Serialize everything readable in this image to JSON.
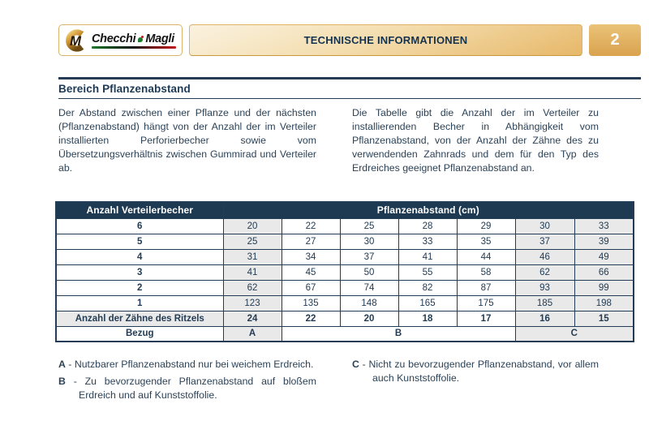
{
  "header": {
    "logo": {
      "brand_left": "Checchi",
      "brand_right": "Magli",
      "monogram": "M"
    },
    "banner_title": "TECHNISCHE INFORMATIONEN",
    "page_number": "2"
  },
  "section": {
    "title": "Bereich Pflanzenabstand"
  },
  "intro": {
    "left": "Der Abstand zwischen einer Pflanze und der nächsten (Pflanzenabstand) hängt von der Anzahl der im Verteiler installierten Perforierbecher sowie vom Übersetzungsverhältnis zwischen Gummirad und Verteiler ab.",
    "right": "Die Tabelle gibt die Anzahl der im Verteiler zu installierenden Becher in Abhängigkeit vom Pflanzenabstand, von der Anzahl der Zähne des zu verwendenden Zahnrads und dem für den Typ des Erdreiches geeignet Pflanzenabstand an."
  },
  "table": {
    "col_header_left": "Anzahl Verteilerbecher",
    "col_header_right": "Pflanzenabstand (cm)",
    "shaded_value_columns": [
      0,
      5,
      6
    ],
    "rows": [
      {
        "label": "6",
        "values": [
          "20",
          "22",
          "25",
          "28",
          "29",
          "30",
          "33"
        ]
      },
      {
        "label": "5",
        "values": [
          "25",
          "27",
          "30",
          "33",
          "35",
          "37",
          "39"
        ]
      },
      {
        "label": "4",
        "values": [
          "31",
          "34",
          "37",
          "41",
          "44",
          "46",
          "49"
        ]
      },
      {
        "label": "3",
        "values": [
          "41",
          "45",
          "50",
          "55",
          "58",
          "62",
          "66"
        ]
      },
      {
        "label": "2",
        "values": [
          "62",
          "67",
          "74",
          "82",
          "87",
          "93",
          "99"
        ]
      },
      {
        "label": "1",
        "values": [
          "123",
          "135",
          "148",
          "165",
          "175",
          "185",
          "198"
        ]
      }
    ],
    "teeth_row": {
      "label": "Anzahl der Zähne des Ritzels",
      "values": [
        "24",
        "22",
        "20",
        "18",
        "17",
        "16",
        "15"
      ]
    },
    "reference_row": {
      "label": "Bezug",
      "groups": [
        {
          "label": "A",
          "span": 1,
          "shaded": true
        },
        {
          "label": "B",
          "span": 4,
          "shaded": false
        },
        {
          "label": "C",
          "span": 2,
          "shaded": true
        }
      ]
    }
  },
  "notes": {
    "left": [
      {
        "key": "A",
        "text": "Nutzbarer Pflanzenabstand nur bei weichem Erdreich."
      },
      {
        "key": "B",
        "text": "Zu bevorzugender Pflanzenabstand auf bloßem Erdreich und auf Kunststoffolie."
      }
    ],
    "right": [
      {
        "key": "C",
        "text": "Nicht zu bevorzugender Pflanzenabstand, vor allem auch Kunststoffolie."
      }
    ]
  },
  "colors": {
    "navy": "#1d3a52",
    "body_text": "#2c4257",
    "cell_shade": "#e9e9e9",
    "gold": "#e7b869",
    "gold_light": "#faf2e0",
    "gold_dark": "#d9a24e"
  }
}
